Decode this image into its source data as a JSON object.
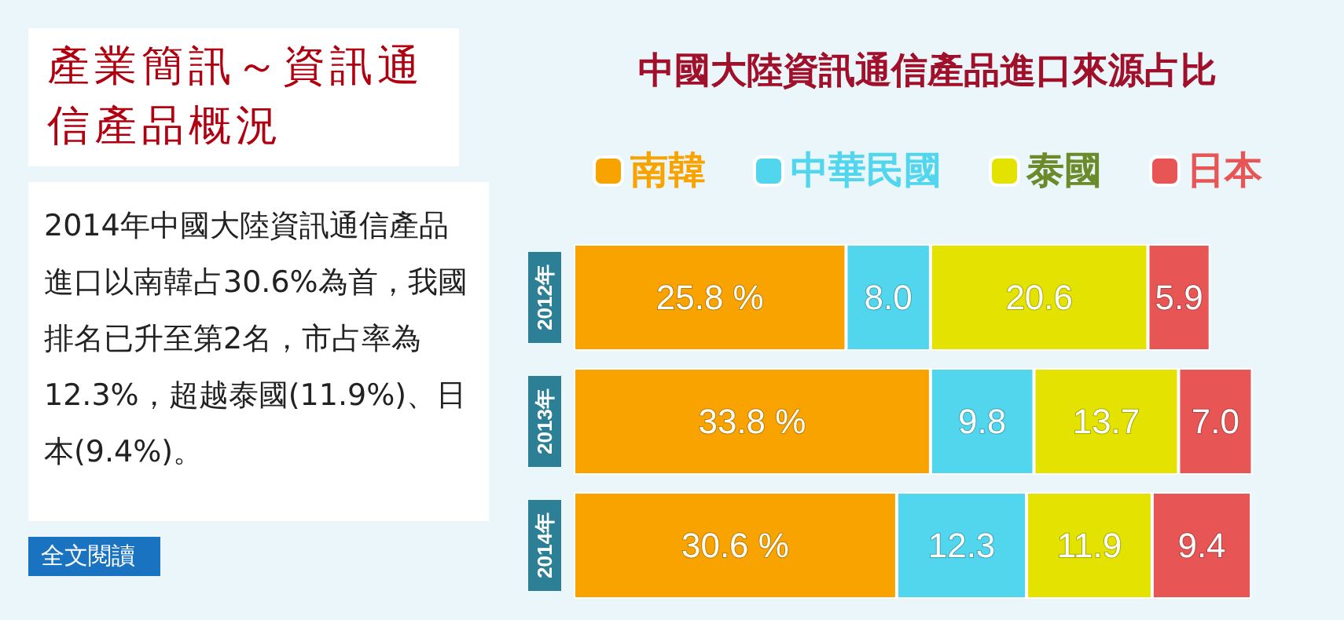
{
  "chart_data": {
    "type": "bar",
    "orientation": "horizontal",
    "stacked": true,
    "title": "中國大陸資訊通信產品進口來源占比",
    "subtitle": "產業簡訊～資訊通信產品概況",
    "annotations": [
      "2014年中國大陸資訊通信產品進口以南韓占30.6%為首，我國排名已升至第2名，市占率為12.3%，超越泰國(11.9%)、日本(9.4%)。",
      "全文閱讀"
    ],
    "categories": [
      "2012年",
      "2013年",
      "2014年"
    ],
    "series": [
      {
        "name": "南韓",
        "color": "#f9a300",
        "values": [
          25.8,
          33.8,
          30.6
        ],
        "value_labels": [
          "25.8 %",
          "33.8 %",
          "30.6 %"
        ]
      },
      {
        "name": "中華民國",
        "color": "#52d6ee",
        "values": [
          8.0,
          9.8,
          12.3
        ],
        "value_labels": [
          "8.0",
          "9.8",
          "12.3"
        ]
      },
      {
        "name": "泰國",
        "color": "#e3e200",
        "values": [
          20.6,
          13.7,
          11.9
        ],
        "value_labels": [
          "20.6",
          "13.7",
          "11.9"
        ]
      },
      {
        "name": "日本",
        "color": "#e85555",
        "values": [
          5.9,
          7.0,
          9.4
        ],
        "value_labels": [
          "5.9",
          "7.0",
          "9.4"
        ]
      }
    ],
    "legend": "top",
    "grid": false
  }
}
